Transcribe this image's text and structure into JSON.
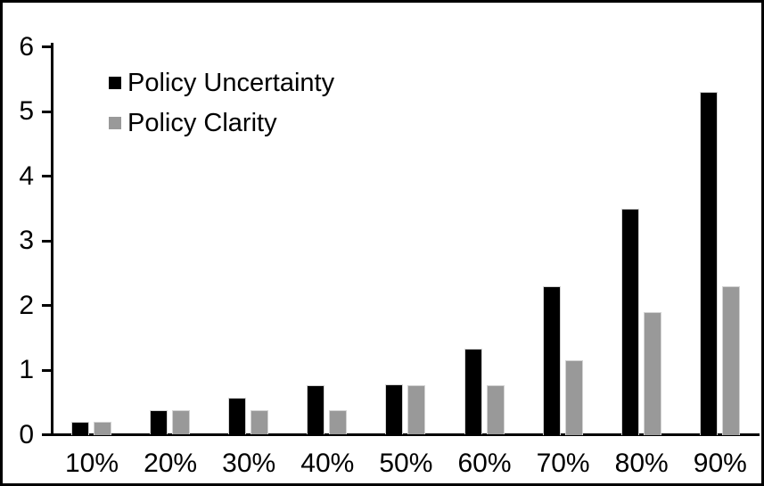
{
  "chart_data": {
    "type": "bar",
    "title": "",
    "xlabel": "",
    "ylabel": "",
    "categories": [
      "10%",
      "20%",
      "30%",
      "40%",
      "50%",
      "60%",
      "70%",
      "80%",
      "90%"
    ],
    "series": [
      {
        "name": "Policy Uncertainty",
        "color": "#000000",
        "values": [
          0.2,
          0.38,
          0.57,
          0.76,
          0.78,
          1.33,
          2.3,
          3.5,
          5.3
        ]
      },
      {
        "name": "Policy Clarity",
        "color": "#999999",
        "values": [
          0.2,
          0.38,
          0.38,
          0.38,
          0.77,
          0.77,
          1.15,
          1.9,
          2.3
        ]
      }
    ],
    "ylim": [
      0,
      6
    ],
    "yticks": [
      "0",
      "1",
      "2",
      "3",
      "4",
      "5",
      "6"
    ],
    "grid": false,
    "legend_position": "top-left-inside",
    "bar_outline_color": "#d3d3d3",
    "frame_border_color": "#000000",
    "background_color": "#ffffff"
  }
}
